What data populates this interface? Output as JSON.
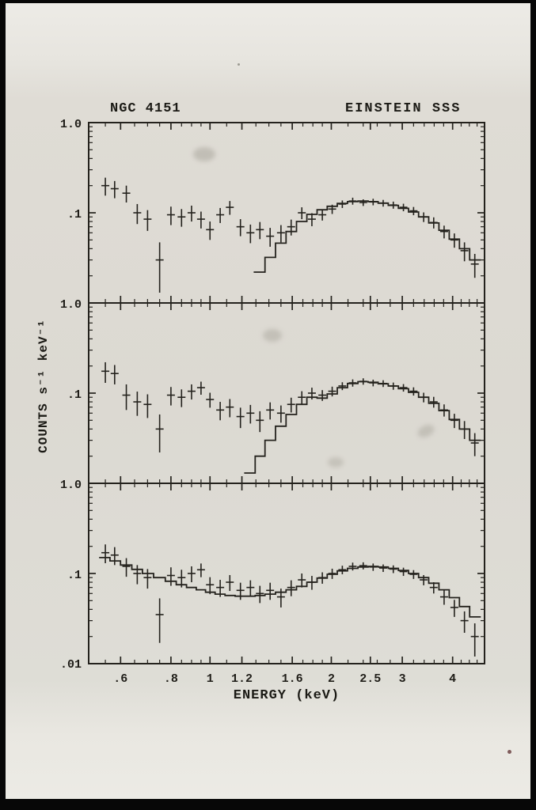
{
  "photo": {
    "frame_color": "#070707",
    "paper_color": "#dcd9d2",
    "ink_color": "#24221d"
  },
  "chart_data": {
    "type": "scatter",
    "title_left": "NGC 4151",
    "title_right": "EINSTEIN SSS",
    "xlabel": "ENERGY (keV)",
    "ylabel": "COUNTS s⁻¹ keV⁻¹",
    "x_scale": "log",
    "y_scale": "log",
    "xlim": [
      0.5,
      4.8
    ],
    "panel_ylim": [
      0.01,
      1.0
    ],
    "grid": false,
    "legend": "none",
    "ink": "#24221d",
    "x_ticks": {
      "values": [
        0.6,
        0.8,
        1.0,
        1.2,
        1.6,
        2.0,
        2.5,
        3.0,
        4.0
      ],
      "labels": [
        ".6",
        ".8",
        "1",
        "1.2",
        "1.6",
        "2",
        "2.5",
        "3",
        "4"
      ]
    },
    "x_minor_ticks": [
      0.55,
      0.65,
      0.7,
      0.75,
      0.85,
      0.9,
      0.95,
      1.1,
      1.3,
      1.4,
      1.5,
      1.7,
      1.8,
      1.9,
      2.2,
      2.4,
      2.6,
      2.8,
      3.2,
      3.4,
      3.6,
      3.8,
      4.2,
      4.4,
      4.6
    ],
    "y_minor_ticks": [
      0.02,
      0.03,
      0.04,
      0.05,
      0.06,
      0.07,
      0.08,
      0.09,
      0.2,
      0.3,
      0.4,
      0.5,
      0.6,
      0.7,
      0.8,
      0.9
    ],
    "y_tick_labels": {
      "top": "1.0",
      "mid": ".1",
      "bottom": ".01"
    },
    "panels": [
      {
        "name": "top",
        "data": {
          "energy": [
            0.55,
            0.58,
            0.62,
            0.66,
            0.7,
            0.75,
            0.8,
            0.85,
            0.9,
            0.95,
            1.0,
            1.06,
            1.12,
            1.19,
            1.26,
            1.33,
            1.41,
            1.5,
            1.59,
            1.69,
            1.79,
            1.9,
            2.01,
            2.13,
            2.26,
            2.4,
            2.54,
            2.69,
            2.85,
            3.02,
            3.2,
            3.39,
            3.59,
            3.81,
            4.04,
            4.28,
            4.54
          ],
          "counts": [
            0.2,
            0.185,
            0.165,
            0.1,
            0.085,
            0.03,
            0.095,
            0.09,
            0.1,
            0.085,
            0.065,
            0.095,
            0.115,
            0.07,
            0.06,
            0.065,
            0.055,
            0.06,
            0.07,
            0.1,
            0.085,
            0.095,
            0.11,
            0.125,
            0.135,
            0.13,
            0.132,
            0.128,
            0.122,
            0.115,
            0.105,
            0.09,
            0.078,
            0.062,
            0.05,
            0.038,
            0.027
          ],
          "err": [
            0.045,
            0.04,
            0.035,
            0.025,
            0.022,
            0.017,
            0.022,
            0.02,
            0.02,
            0.018,
            0.015,
            0.018,
            0.02,
            0.015,
            0.014,
            0.014,
            0.013,
            0.013,
            0.014,
            0.015,
            0.014,
            0.013,
            0.013,
            0.012,
            0.012,
            0.011,
            0.011,
            0.011,
            0.011,
            0.011,
            0.011,
            0.011,
            0.011,
            0.01,
            0.009,
            0.009,
            0.008
          ]
        },
        "model": {
          "energy": [
            1.33,
            1.41,
            1.5,
            1.59,
            1.69,
            1.79,
            1.9,
            2.01,
            2.13,
            2.26,
            2.4,
            2.54,
            2.69,
            2.85,
            3.02,
            3.2,
            3.39,
            3.59,
            3.81,
            4.04,
            4.28,
            4.54
          ],
          "counts": [
            0.022,
            0.032,
            0.046,
            0.062,
            0.08,
            0.096,
            0.108,
            0.118,
            0.127,
            0.133,
            0.135,
            0.133,
            0.128,
            0.121,
            0.112,
            0.102,
            0.09,
            0.077,
            0.064,
            0.051,
            0.04,
            0.03
          ]
        }
      },
      {
        "name": "middle",
        "data": {
          "energy": [
            0.55,
            0.58,
            0.62,
            0.66,
            0.7,
            0.75,
            0.8,
            0.85,
            0.9,
            0.95,
            1.0,
            1.06,
            1.12,
            1.19,
            1.26,
            1.33,
            1.41,
            1.5,
            1.59,
            1.69,
            1.79,
            1.9,
            2.01,
            2.13,
            2.26,
            2.4,
            2.54,
            2.69,
            2.85,
            3.02,
            3.2,
            3.39,
            3.59,
            3.81,
            4.04,
            4.28,
            4.54
          ],
          "counts": [
            0.175,
            0.165,
            0.095,
            0.08,
            0.075,
            0.04,
            0.095,
            0.09,
            0.105,
            0.115,
            0.085,
            0.065,
            0.07,
            0.055,
            0.06,
            0.05,
            0.065,
            0.06,
            0.075,
            0.09,
            0.1,
            0.095,
            0.105,
            0.12,
            0.13,
            0.135,
            0.13,
            0.128,
            0.12,
            0.115,
            0.105,
            0.09,
            0.08,
            0.065,
            0.05,
            0.04,
            0.028
          ],
          "err": [
            0.045,
            0.04,
            0.03,
            0.024,
            0.022,
            0.018,
            0.022,
            0.02,
            0.02,
            0.019,
            0.016,
            0.015,
            0.016,
            0.014,
            0.014,
            0.013,
            0.014,
            0.013,
            0.014,
            0.015,
            0.015,
            0.013,
            0.013,
            0.012,
            0.012,
            0.011,
            0.011,
            0.011,
            0.011,
            0.011,
            0.011,
            0.011,
            0.011,
            0.01,
            0.009,
            0.009,
            0.008
          ]
        },
        "model": {
          "energy": [
            1.26,
            1.33,
            1.41,
            1.5,
            1.59,
            1.69,
            1.79,
            1.9,
            2.01,
            2.13,
            2.26,
            2.4,
            2.54,
            2.69,
            2.85,
            3.02,
            3.2,
            3.39,
            3.59,
            3.81,
            4.04,
            4.28,
            4.54
          ],
          "counts": [
            0.013,
            0.02,
            0.03,
            0.043,
            0.058,
            0.075,
            0.09,
            0.088,
            0.098,
            0.115,
            0.128,
            0.134,
            0.132,
            0.127,
            0.12,
            0.112,
            0.102,
            0.09,
            0.077,
            0.064,
            0.051,
            0.04,
            0.03
          ]
        }
      },
      {
        "name": "bottom",
        "data": {
          "energy": [
            0.55,
            0.58,
            0.62,
            0.66,
            0.7,
            0.75,
            0.8,
            0.85,
            0.9,
            0.95,
            1.0,
            1.06,
            1.12,
            1.19,
            1.26,
            1.33,
            1.41,
            1.5,
            1.59,
            1.69,
            1.79,
            1.9,
            2.01,
            2.13,
            2.26,
            2.4,
            2.54,
            2.69,
            2.85,
            3.02,
            3.2,
            3.39,
            3.59,
            3.81,
            4.04,
            4.28,
            4.54
          ],
          "counts": [
            0.17,
            0.16,
            0.12,
            0.1,
            0.09,
            0.035,
            0.095,
            0.09,
            0.1,
            0.11,
            0.075,
            0.07,
            0.08,
            0.065,
            0.07,
            0.06,
            0.065,
            0.055,
            0.07,
            0.085,
            0.08,
            0.09,
            0.1,
            0.11,
            0.12,
            0.122,
            0.118,
            0.115,
            0.112,
            0.105,
            0.098,
            0.085,
            0.07,
            0.055,
            0.042,
            0.03,
            0.02
          ],
          "err": [
            0.04,
            0.036,
            0.028,
            0.024,
            0.022,
            0.018,
            0.022,
            0.02,
            0.02,
            0.019,
            0.016,
            0.015,
            0.016,
            0.014,
            0.014,
            0.013,
            0.014,
            0.013,
            0.014,
            0.015,
            0.014,
            0.013,
            0.013,
            0.012,
            0.012,
            0.011,
            0.011,
            0.011,
            0.011,
            0.011,
            0.011,
            0.011,
            0.01,
            0.01,
            0.009,
            0.008,
            0.008
          ]
        },
        "model": {
          "energy": [
            0.55,
            0.58,
            0.62,
            0.66,
            0.7,
            0.75,
            0.8,
            0.85,
            0.9,
            0.95,
            1.0,
            1.06,
            1.12,
            1.19,
            1.26,
            1.33,
            1.41,
            1.5,
            1.59,
            1.69,
            1.79,
            1.9,
            2.01,
            2.13,
            2.26,
            2.4,
            2.54,
            2.69,
            2.85,
            3.02,
            3.2,
            3.39,
            3.59,
            3.81,
            4.04,
            4.28,
            4.54
          ],
          "counts": [
            0.15,
            0.138,
            0.124,
            0.111,
            0.1,
            0.09,
            0.082,
            0.075,
            0.07,
            0.066,
            0.062,
            0.059,
            0.057,
            0.056,
            0.056,
            0.057,
            0.059,
            0.062,
            0.066,
            0.072,
            0.08,
            0.089,
            0.098,
            0.107,
            0.114,
            0.118,
            0.12,
            0.118,
            0.114,
            0.108,
            0.1,
            0.09,
            0.078,
            0.066,
            0.054,
            0.043,
            0.033
          ]
        }
      }
    ]
  }
}
